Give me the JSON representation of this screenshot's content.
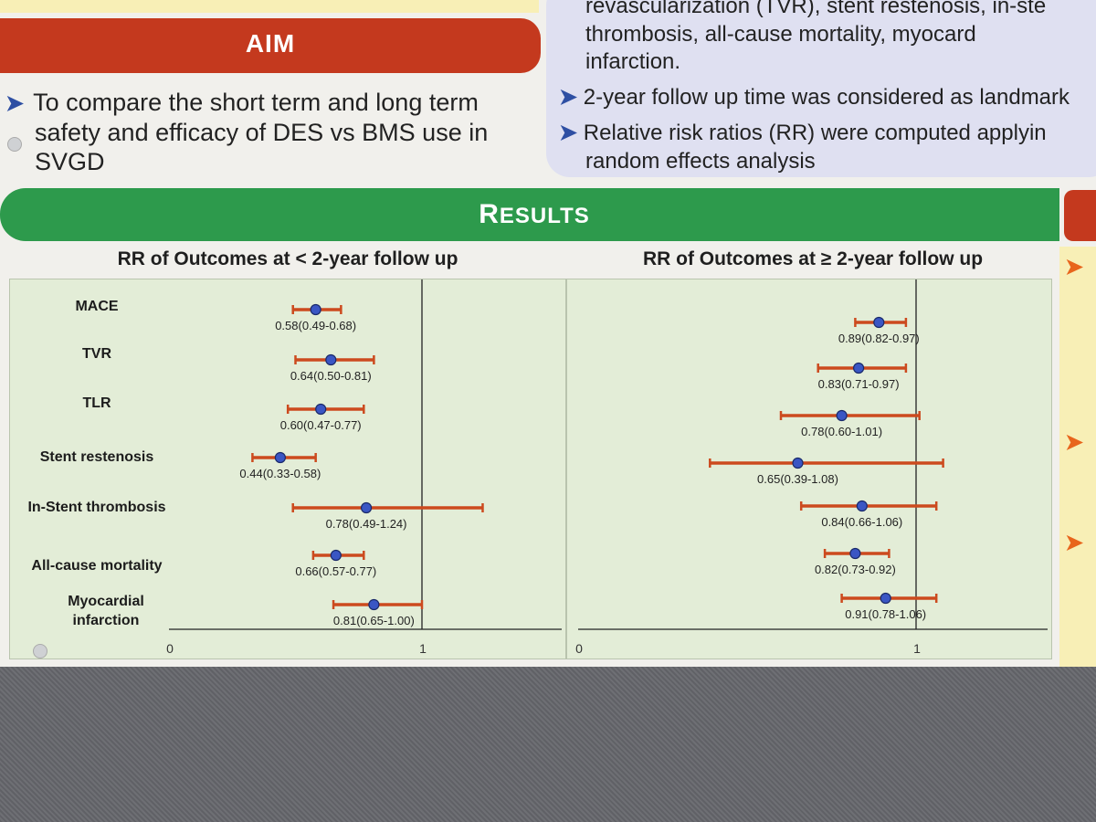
{
  "aim": {
    "title": "AIM",
    "bullet": "To compare the short term and long term",
    "line2": "safety and efficacy of DES vs BMS use in",
    "line3": "SVGD"
  },
  "methods": {
    "line1": "revascularization (TVR), stent restenosis, in-ste",
    "line2": "thrombosis,       all-cause        mortality,       myocard",
    "line3": "infarction.",
    "bullet2": "2-year follow up time was considered as landmark",
    "bullet3a": "Relative risk ratios (RR) were computed applyin",
    "bullet3b": "random effects analysis"
  },
  "results": {
    "title_first": "R",
    "title_rest": "ESULTS"
  },
  "colors": {
    "ci_line": "#cc4a1e",
    "point_fill": "#3a56c4",
    "point_stroke": "#1a2a6a",
    "panel_bg": "#e3edd7",
    "aim_red": "#c4391e",
    "results_green": "#2d9a4c",
    "methods_lavender": "#dfe0f1"
  },
  "chart_data": [
    {
      "type": "forest",
      "title": "RR of Outcomes at < 2-year follow up",
      "xlim": [
        0,
        1
      ],
      "x_ticks": [
        "0",
        "1"
      ],
      "reference_line": 1,
      "rows": [
        {
          "label": "MACE",
          "rr": 0.58,
          "lo": 0.49,
          "hi": 0.68,
          "text": "0.58(0.49-0.68)"
        },
        {
          "label": "TVR",
          "rr": 0.64,
          "lo": 0.5,
          "hi": 0.81,
          "text": "0.64(0.50-0.81)"
        },
        {
          "label": "TLR",
          "rr": 0.6,
          "lo": 0.47,
          "hi": 0.77,
          "text": "0.60(0.47-0.77)"
        },
        {
          "label": "Stent restenosis",
          "rr": 0.44,
          "lo": 0.33,
          "hi": 0.58,
          "text": "0.44(0.33-0.58)"
        },
        {
          "label": "In-Stent thrombosis",
          "rr": 0.78,
          "lo": 0.49,
          "hi": 1.24,
          "text": "0.78(0.49-1.24)"
        },
        {
          "label": "All-cause mortality",
          "rr": 0.66,
          "lo": 0.57,
          "hi": 0.77,
          "text": "0.66(0.57-0.77)"
        },
        {
          "label": "Myocardial infarction",
          "rr": 0.81,
          "lo": 0.65,
          "hi": 1.0,
          "text": "0.81(0.65-1.00)"
        }
      ]
    },
    {
      "type": "forest",
      "title": "RR of Outcomes at ≥ 2-year follow up",
      "xlim": [
        0,
        1
      ],
      "x_ticks": [
        "0",
        "1"
      ],
      "reference_line": 1,
      "rows": [
        {
          "rr": 0.89,
          "lo": 0.82,
          "hi": 0.97,
          "text": "0.89(0.82-0.97)"
        },
        {
          "rr": 0.83,
          "lo": 0.71,
          "hi": 0.97,
          "text": "0.83(0.71-0.97)"
        },
        {
          "rr": 0.78,
          "lo": 0.6,
          "hi": 1.01,
          "text": "0.78(0.60-1.01)"
        },
        {
          "rr": 0.65,
          "lo": 0.39,
          "hi": 1.08,
          "text": "0.65(0.39-1.08)"
        },
        {
          "rr": 0.84,
          "lo": 0.66,
          "hi": 1.06,
          "text": "0.84(0.66-1.06)"
        },
        {
          "rr": 0.82,
          "lo": 0.73,
          "hi": 0.92,
          "text": "0.82(0.73-0.92)"
        },
        {
          "rr": 0.91,
          "lo": 0.78,
          "hi": 1.06,
          "text": "0.91(0.78-1.06)"
        }
      ]
    }
  ]
}
